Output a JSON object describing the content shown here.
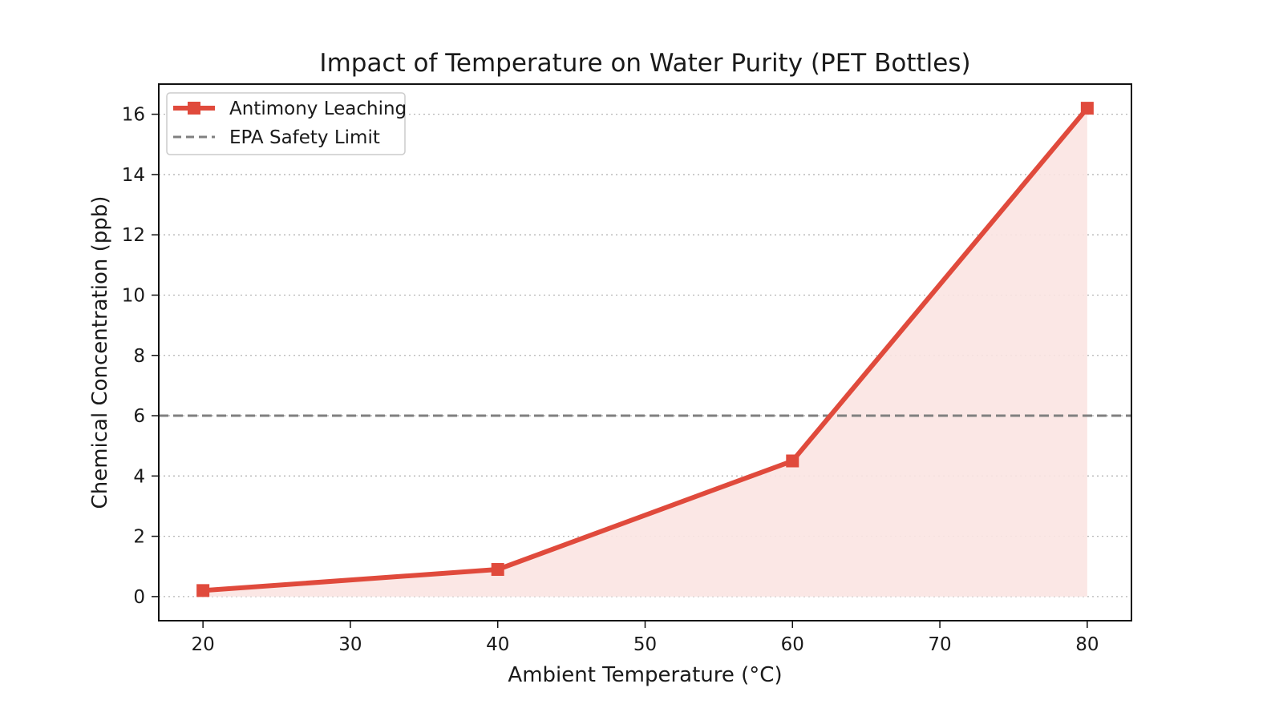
{
  "chart_data": {
    "type": "line",
    "title": "Impact of Temperature on Water Purity (PET Bottles)",
    "xlabel": "Ambient Temperature (°C)",
    "ylabel": "Chemical Concentration (ppb)",
    "xlim": [
      17,
      83
    ],
    "ylim": [
      -0.8,
      17
    ],
    "x_ticks": [
      20,
      30,
      40,
      50,
      60,
      70,
      80
    ],
    "y_ticks": [
      0,
      2,
      4,
      6,
      8,
      10,
      12,
      14,
      16
    ],
    "grid": "horizontal-dotted",
    "legend_position": "upper-left",
    "series": [
      {
        "name": "Antimony Leaching",
        "x": [
          20,
          40,
          60,
          80
        ],
        "y": [
          0.2,
          0.9,
          4.5,
          16.2
        ],
        "color": "#e04a3c",
        "fill_color": "#fbe4e2",
        "marker": "square",
        "area_fill": true
      }
    ],
    "reference_lines": [
      {
        "name": "EPA Safety Limit",
        "y": 6,
        "color": "#808080",
        "style": "dashed"
      }
    ]
  }
}
